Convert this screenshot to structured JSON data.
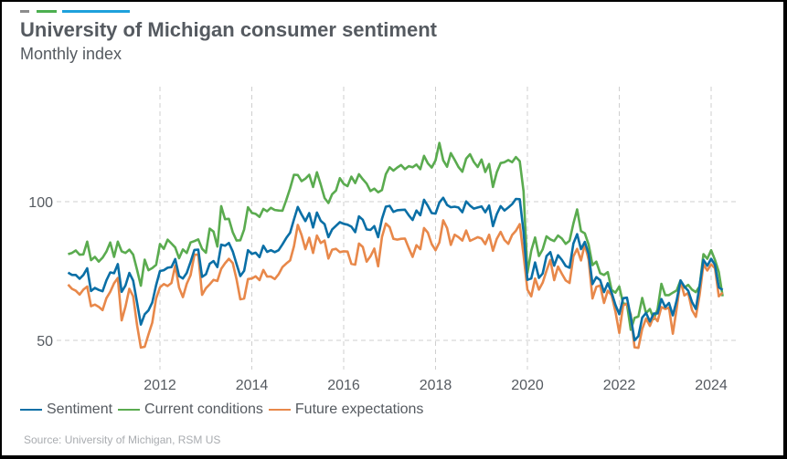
{
  "header": {
    "accent_colors": [
      "#8c8c8c",
      "#4caf50",
      "#1ea1dc"
    ]
  },
  "chart_data": {
    "type": "line",
    "title": "University of Michigan consumer sentiment",
    "subtitle": "Monthly index",
    "xlabel": "",
    "ylabel": "",
    "x_start": "2010-01",
    "x_end": "2024-06",
    "frequency": "monthly",
    "xlim": [
      2010.0,
      2024.9
    ],
    "ylim": [
      42,
      135
    ],
    "x_ticks": [
      2012,
      2014,
      2016,
      2018,
      2020,
      2022,
      2024
    ],
    "x_tick_labels": [
      "2012",
      "2014",
      "2016",
      "2018",
      "2020",
      "2022",
      "2024"
    ],
    "y_ticks": [
      50,
      100
    ],
    "y_tick_labels": [
      "50",
      "100"
    ],
    "grid": true,
    "legend_position": "bottom-left",
    "source": "Source: University of Michigan, RSM US",
    "series": [
      {
        "name": "Sentiment",
        "color": "#0a6fa6",
        "values": [
          74.4,
          73.6,
          73.6,
          72.2,
          73.6,
          76.0,
          67.8,
          68.9,
          68.2,
          67.7,
          71.6,
          74.5,
          74.2,
          77.5,
          67.5,
          69.8,
          74.3,
          71.5,
          63.7,
          55.7,
          59.4,
          60.8,
          63.7,
          69.9,
          75.0,
          75.3,
          76.2,
          76.4,
          79.3,
          73.2,
          72.3,
          74.3,
          78.3,
          82.6,
          82.7,
          72.9,
          73.8,
          77.6,
          78.6,
          76.4,
          84.5,
          84.1,
          85.1,
          82.1,
          77.5,
          73.2,
          75.1,
          82.5,
          81.2,
          81.6,
          80.0,
          84.1,
          81.9,
          82.5,
          81.8,
          82.5,
          84.6,
          86.9,
          88.8,
          93.6,
          98.1,
          95.4,
          93.0,
          95.9,
          90.7,
          96.1,
          93.1,
          91.9,
          87.2,
          90.0,
          91.3,
          92.6,
          92.0,
          91.7,
          91.0,
          89.0,
          94.7,
          93.5,
          90.0,
          89.8,
          91.2,
          87.2,
          93.8,
          98.2,
          98.5,
          96.3,
          96.9,
          97.0,
          97.1,
          95.1,
          93.4,
          96.8,
          95.1,
          100.7,
          98.5,
          95.9,
          95.7,
          99.7,
          101.4,
          98.8,
          98.0,
          98.2,
          97.9,
          96.2,
          100.1,
          98.6,
          97.5,
          97.9,
          98.3,
          96.2,
          98.6,
          91.2,
          95.5,
          98.4,
          96.8,
          97.9,
          99.1,
          101.0,
          100.9,
          89.1,
          71.8,
          72.3,
          78.1,
          72.5,
          74.1,
          80.4,
          81.8,
          76.9,
          80.7,
          79.0,
          76.8,
          76.2,
          84.9,
          88.3,
          82.9,
          85.5,
          81.2,
          70.3,
          72.8,
          71.7,
          67.4,
          70.6,
          67.2,
          62.8,
          59.4,
          65.2,
          65.4,
          58.4,
          50.0,
          51.5,
          58.2,
          59.9,
          56.8,
          59.7,
          59.7,
          64.9,
          62.0,
          63.5,
          59.0,
          64.4,
          71.6,
          69.4,
          67.9,
          63.8,
          61.3,
          69.7,
          79.0,
          76.9,
          79.4,
          77.2,
          69.1,
          68.2
        ]
      },
      {
        "name": "Current conditions",
        "color": "#5aab4f",
        "values": [
          81.1,
          81.5,
          82.4,
          80.9,
          81.0,
          85.6,
          78.9,
          80.1,
          78.4,
          79.8,
          82.0,
          85.3,
          80.1,
          85.6,
          82.1,
          81.5,
          82.7,
          80.9,
          75.5,
          69.7,
          79.1,
          75.3,
          76.1,
          77.2,
          84.7,
          83.0,
          86.3,
          84.9,
          83.5,
          79.6,
          82.8,
          81.5,
          85.3,
          85.8,
          86.4,
          83.0,
          81.6,
          90.3,
          89.2,
          83.8,
          98.4,
          93.7,
          93.8,
          89.0,
          86.0,
          86.1,
          90.0,
          98.0,
          96.0,
          95.6,
          94.5,
          97.4,
          96.5,
          97.8,
          97.0,
          96.8,
          96.7,
          100.6,
          104.8,
          109.7,
          109.6,
          107.4,
          108.3,
          109.7,
          105.3,
          110.6,
          106.2,
          101.3,
          99.5,
          102.7,
          104.0,
          108.5,
          106.4,
          105.6,
          109.0,
          106.7,
          109.9,
          108.1,
          106.5,
          103.8,
          104.7,
          103.4,
          104.2,
          109.9,
          112.4,
          111.2,
          112.3,
          113.2,
          111.7,
          112.8,
          112.4,
          113.4,
          111.7,
          116.5,
          113.8,
          112.3,
          114.9,
          121.2,
          114.9,
          112.6,
          117.5,
          115.1,
          112.5,
          110.8,
          115.5,
          117.1,
          114.3,
          112.5,
          115.2,
          110.7,
          113.6,
          105.3,
          110.6,
          113.9,
          114.2,
          115.0,
          114.2,
          116.1,
          114.6,
          103.7,
          74.3,
          82.3,
          87.1,
          80.4,
          82.8,
          87.5,
          86.4,
          85.8,
          87.8,
          86.7,
          84.8,
          85.9,
          92.1,
          97.2,
          89.4,
          88.6,
          84.5,
          77.1,
          78.4,
          74.2,
          73.6,
          74.6,
          68.2,
          67.2,
          69.4,
          63.3,
          63.1,
          53.8,
          58.1,
          58.6,
          65.3,
          59.8,
          61.3,
          57.7,
          61.2,
          70.4,
          66.3,
          66.3,
          67.2,
          68.0,
          71.6,
          69.0,
          70.0,
          68.3,
          67.4,
          69.5,
          81.1,
          79.4,
          82.5,
          79.0,
          74.6,
          65.9
        ]
      },
      {
        "name": "Future expectations",
        "color": "#e8884a",
        "values": [
          70.1,
          68.6,
          67.9,
          66.5,
          68.3,
          69.4,
          62.3,
          62.9,
          62.1,
          60.9,
          65.2,
          67.5,
          70.6,
          72.5,
          57.2,
          62.2,
          68.6,
          65.9,
          55.6,
          47.4,
          47.7,
          52.1,
          56.4,
          65.1,
          69.1,
          70.3,
          69.6,
          70.7,
          77.0,
          69.0,
          65.6,
          70.4,
          73.5,
          80.9,
          80.9,
          66.4,
          68.8,
          70.2,
          71.8,
          71.4,
          75.8,
          77.8,
          79.4,
          77.9,
          72.0,
          64.8,
          65.1,
          72.1,
          72.3,
          73.1,
          71.7,
          75.4,
          73.0,
          73.0,
          72.1,
          73.8,
          76.4,
          77.7,
          78.8,
          83.9,
          91.6,
          88.0,
          82.9,
          87.0,
          81.5,
          87.8,
          85.1,
          86.0,
          79.5,
          82.7,
          83.0,
          81.8,
          82.1,
          82.0,
          77.6,
          77.3,
          84.9,
          83.7,
          78.4,
          80.3,
          83.1,
          76.7,
          87.3,
          92.1,
          90.8,
          86.6,
          86.3,
          86.6,
          86.7,
          83.3,
          80.1,
          84.3,
          82.9,
          90.5,
          88.8,
          84.7,
          82.5,
          85.3,
          93.3,
          90.5,
          84.4,
          88.1,
          87.2,
          86.0,
          89.6,
          85.9,
          86.5,
          87.2,
          86.7,
          84.7,
          88.1,
          82.3,
          86.6,
          89.1,
          86.2,
          84.8,
          88.0,
          89.5,
          91.9,
          80.7,
          68.3,
          65.9,
          72.3,
          68.3,
          70.8,
          75.1,
          79.0,
          71.7,
          76.6,
          74.0,
          71.6,
          70.7,
          80.3,
          83.0,
          78.8,
          84.6,
          79.1,
          65.1,
          69.3,
          69.8,
          63.5,
          67.9,
          66.3,
          60.4,
          52.7,
          62.6,
          63.2,
          59.3,
          47.5,
          47.3,
          54.1,
          57.9,
          55.2,
          58.7,
          56.9,
          62.0,
          61.3,
          61.8,
          52.4,
          61.5,
          71.5,
          66.2,
          67.1,
          60.9,
          58.5,
          66.4,
          77.4,
          75.2,
          77.4,
          76.0,
          65.9,
          67.2
        ]
      }
    ]
  }
}
